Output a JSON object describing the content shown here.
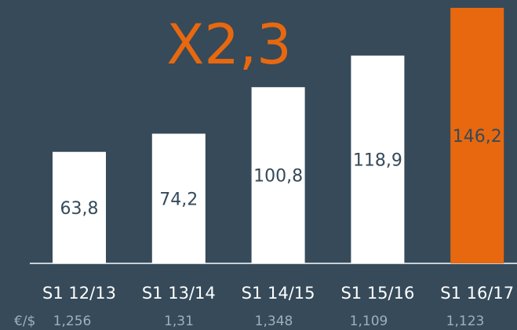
{
  "chart_data": {
    "type": "bar",
    "annotation": "X2,3",
    "categories": [
      "S1 12/13",
      "S1 13/14",
      "S1 14/15",
      "S1 15/16",
      "S1 16/17"
    ],
    "values": [
      63.8,
      74.2,
      100.8,
      118.9,
      146.2
    ],
    "value_labels": [
      "63,8",
      "74,2",
      "100,8",
      "118,9",
      "146,2"
    ],
    "colors": [
      "#ffffff",
      "#ffffff",
      "#ffffff",
      "#ffffff",
      "#e8680f"
    ],
    "exchange_rate": {
      "label": "€/$",
      "values": [
        "1,256",
        "1,31",
        "1,348",
        "1,109",
        "1,123"
      ]
    }
  }
}
